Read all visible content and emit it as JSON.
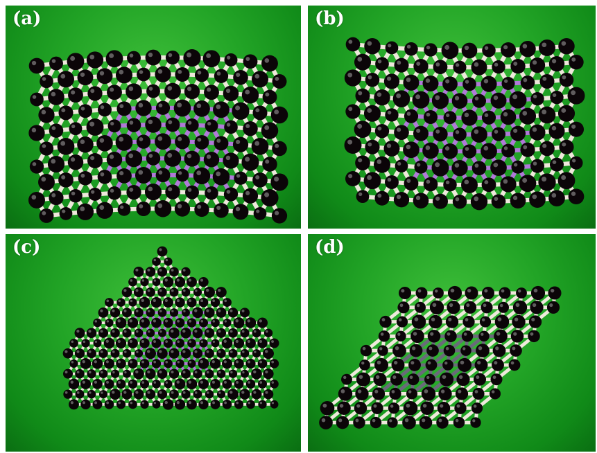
{
  "panels": [
    {
      "id": "a",
      "label": "(a)",
      "model": "flake-upright-curved",
      "highlight": "#b07ad8"
    },
    {
      "id": "b",
      "label": "(b)",
      "model": "flake-upright-curved",
      "highlight": "#b07ad8"
    },
    {
      "id": "c",
      "label": "(c)",
      "model": "triangle",
      "highlight": "#b07ad8"
    },
    {
      "id": "d",
      "label": "(d)",
      "model": "parallelogram",
      "highlight": "#6a6a7a"
    }
  ],
  "colors": {
    "background_green": "#22a426",
    "atom_black": "#0b0508",
    "bond_white": "#efe9dc",
    "label_white": "#ffffff"
  }
}
